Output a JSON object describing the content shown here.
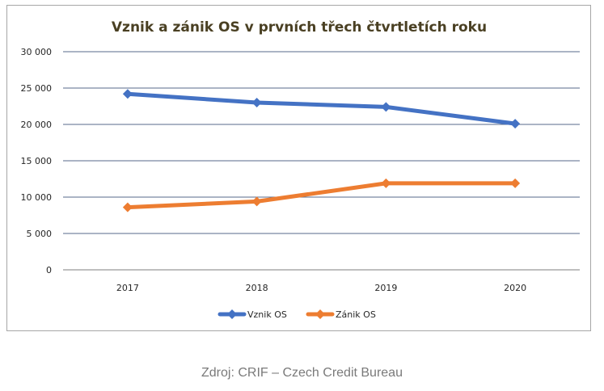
{
  "chart_data": {
    "type": "line",
    "title": "Vznik a zánik OS v prvních třech čtvrtletích roku",
    "categories": [
      "2017",
      "2018",
      "2019",
      "2020"
    ],
    "ylim": [
      0,
      30000
    ],
    "yticks": [
      0,
      5000,
      10000,
      15000,
      20000,
      25000,
      30000
    ],
    "ytick_labels": [
      "0",
      "5 000",
      "10 000",
      "15 000",
      "20 000",
      "25 000",
      "30 000"
    ],
    "grid": true,
    "legend_position": "bottom",
    "series": [
      {
        "name": "Vznik OS",
        "values": [
          24200,
          23000,
          22400,
          20100
        ],
        "color": "#4472c4",
        "marker": "diamond"
      },
      {
        "name": "Zánik OS",
        "values": [
          8600,
          9400,
          11900,
          11900
        ],
        "color": "#ed7d31",
        "marker": "diamond"
      }
    ],
    "xlabel": "",
    "ylabel": ""
  },
  "caption": "Zdroj: CRIF – Czech Credit Bureau"
}
